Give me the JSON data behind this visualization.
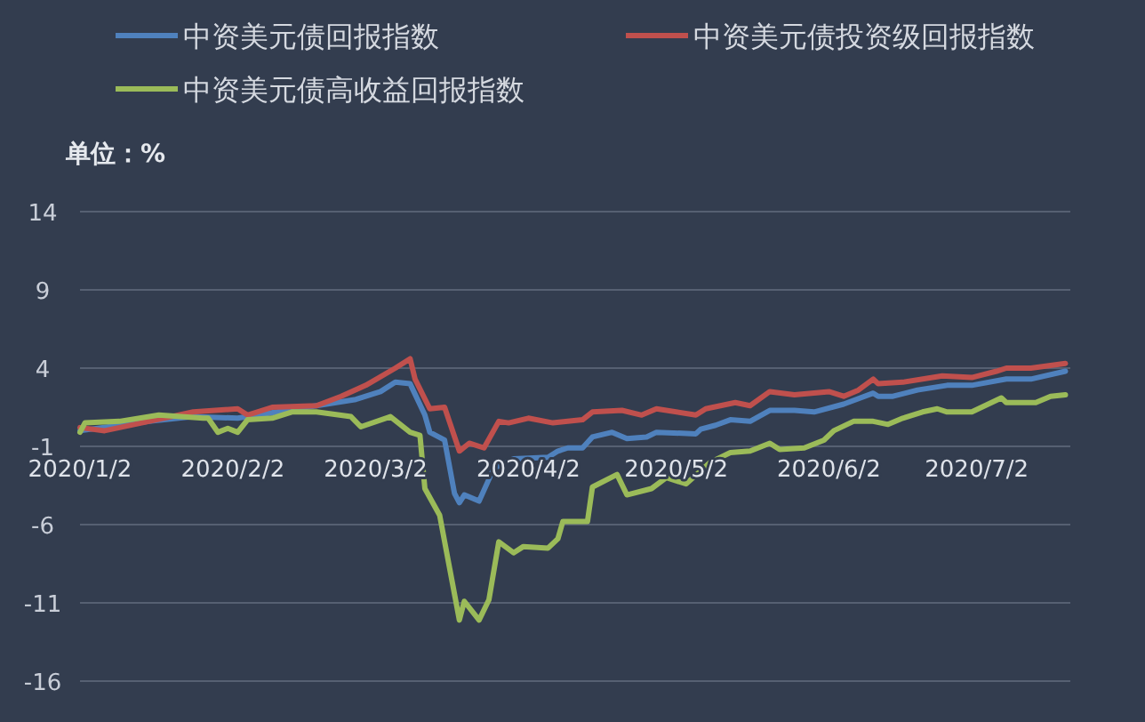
{
  "chart_data": {
    "type": "line",
    "ylabel": "单位：%",
    "legend": "top",
    "grid": "y",
    "marker": "none",
    "line_style": "solid",
    "xlim": [
      "2020-01-02",
      "2020-07-21"
    ],
    "ylim": [
      -16,
      14
    ],
    "yticks": [
      -16,
      -11,
      -6,
      -1,
      4,
      9,
      14
    ],
    "xticks": [
      {
        "value": "2020-01-02",
        "label": "2020/1/2"
      },
      {
        "value": "2020-02-02",
        "label": "2020/2/2"
      },
      {
        "value": "2020-03-02",
        "label": "2020/3/2"
      },
      {
        "value": "2020-04-02",
        "label": "2020/4/2"
      },
      {
        "value": "2020-05-02",
        "label": "2020/5/2"
      },
      {
        "value": "2020-06-02",
        "label": "2020/6/2"
      },
      {
        "value": "2020-07-02",
        "label": "2020/7/2"
      }
    ],
    "series": [
      {
        "name": "中资美元债回报指数",
        "color": "#4f81bd",
        "x": [
          "2020-01-02",
          "2020-01-16",
          "2020-01-25",
          "2020-02-03",
          "2020-02-11",
          "2020-02-19",
          "2020-02-27",
          "2020-03-03",
          "2020-03-06",
          "2020-03-09",
          "2020-03-12",
          "2020-03-13",
          "2020-03-16",
          "2020-03-18",
          "2020-03-19",
          "2020-03-20",
          "2020-03-23",
          "2020-03-26",
          "2020-03-30",
          "2020-04-06",
          "2020-04-08",
          "2020-04-10",
          "2020-04-13",
          "2020-04-15",
          "2020-04-19",
          "2020-04-22",
          "2020-04-26",
          "2020-04-28",
          "2020-05-06",
          "2020-05-07",
          "2020-05-10",
          "2020-05-13",
          "2020-05-17",
          "2020-05-21",
          "2020-05-26",
          "2020-05-30",
          "2020-06-05",
          "2020-06-11",
          "2020-06-12",
          "2020-06-15",
          "2020-06-20",
          "2020-06-26",
          "2020-07-01",
          "2020-07-08",
          "2020-07-13",
          "2020-07-20"
        ],
        "values": [
          0.0,
          0.6,
          0.9,
          0.8,
          1.2,
          1.6,
          2.0,
          2.5,
          3.1,
          3.0,
          1.0,
          -0.1,
          -0.6,
          -4.0,
          -4.6,
          -4.1,
          -4.5,
          -2.4,
          -1.8,
          -1.7,
          -1.3,
          -1.1,
          -1.1,
          -0.4,
          -0.1,
          -0.5,
          -0.4,
          -0.1,
          -0.2,
          0.1,
          0.35,
          0.7,
          0.6,
          1.3,
          1.3,
          1.2,
          1.7,
          2.4,
          2.2,
          2.2,
          2.6,
          2.9,
          2.9,
          3.3,
          3.3,
          3.8
        ]
      },
      {
        "name": "中资美元债投资级回报指数",
        "color": "#c0504d",
        "x": [
          "2020-01-02",
          "2020-01-07",
          "2020-01-16",
          "2020-01-25",
          "2020-02-03",
          "2020-02-05",
          "2020-02-10",
          "2020-02-19",
          "2020-02-24",
          "2020-02-29",
          "2020-03-06",
          "2020-03-09",
          "2020-03-10",
          "2020-03-13",
          "2020-03-16",
          "2020-03-19",
          "2020-03-21",
          "2020-03-24",
          "2020-03-27",
          "2020-03-29",
          "2020-04-02",
          "2020-04-07",
          "2020-04-13",
          "2020-04-15",
          "2020-04-21",
          "2020-04-25",
          "2020-04-28",
          "2020-05-06",
          "2020-05-08",
          "2020-05-14",
          "2020-05-17",
          "2020-05-21",
          "2020-05-26",
          "2020-06-02",
          "2020-06-05",
          "2020-06-08",
          "2020-06-11",
          "2020-06-12",
          "2020-06-17",
          "2020-06-25",
          "2020-07-01",
          "2020-07-06",
          "2020-07-08",
          "2020-07-13",
          "2020-07-20"
        ],
        "values": [
          0.2,
          0.0,
          0.6,
          1.2,
          1.4,
          1.0,
          1.5,
          1.6,
          2.2,
          2.9,
          4.0,
          4.6,
          3.3,
          1.4,
          1.5,
          -1.3,
          -0.8,
          -1.1,
          0.6,
          0.5,
          0.8,
          0.5,
          0.7,
          1.2,
          1.3,
          1.0,
          1.4,
          1.0,
          1.4,
          1.8,
          1.6,
          2.5,
          2.3,
          2.5,
          2.2,
          2.6,
          3.3,
          3.0,
          3.1,
          3.5,
          3.4,
          3.8,
          4.0,
          4.0,
          4.3
        ]
      },
      {
        "name": "中资美元债高收益回报指数",
        "color": "#9bbb59",
        "x": [
          "2020-01-02",
          "2020-01-03",
          "2020-01-10",
          "2020-01-18",
          "2020-01-27",
          "2020-01-28",
          "2020-01-30",
          "2020-02-01",
          "2020-02-03",
          "2020-02-05",
          "2020-02-10",
          "2020-02-14",
          "2020-02-19",
          "2020-02-26",
          "2020-02-28",
          "2020-03-05",
          "2020-03-09",
          "2020-03-11",
          "2020-03-12",
          "2020-03-15",
          "2020-03-19",
          "2020-03-20",
          "2020-03-23",
          "2020-03-25",
          "2020-03-27",
          "2020-03-30",
          "2020-04-01",
          "2020-04-06",
          "2020-04-08",
          "2020-04-09",
          "2020-04-14",
          "2020-04-15",
          "2020-04-20",
          "2020-04-22",
          "2020-04-27",
          "2020-04-30",
          "2020-05-04",
          "2020-05-09",
          "2020-05-13",
          "2020-05-17",
          "2020-05-21",
          "2020-05-23",
          "2020-05-28",
          "2020-06-01",
          "2020-06-03",
          "2020-06-07",
          "2020-06-11",
          "2020-06-14",
          "2020-06-17",
          "2020-06-21",
          "2020-06-24",
          "2020-06-26",
          "2020-07-01",
          "2020-07-07",
          "2020-07-08",
          "2020-07-14",
          "2020-07-17",
          "2020-07-20"
        ],
        "values": [
          -0.1,
          0.5,
          0.6,
          1.0,
          0.8,
          0.8,
          -0.1,
          0.15,
          -0.1,
          0.7,
          0.8,
          1.2,
          1.2,
          0.9,
          0.25,
          0.9,
          -0.1,
          -0.3,
          -3.7,
          -5.4,
          -12.1,
          -10.9,
          -12.1,
          -10.8,
          -7.1,
          -7.8,
          -7.4,
          -7.5,
          -6.9,
          -5.8,
          -5.8,
          -3.6,
          -2.8,
          -4.1,
          -3.7,
          -3.0,
          -3.4,
          -2.0,
          -1.4,
          -1.3,
          -0.8,
          -1.2,
          -1.1,
          -0.6,
          0.0,
          0.6,
          0.6,
          0.4,
          0.8,
          1.2,
          1.4,
          1.2,
          1.2,
          2.1,
          1.8,
          1.8,
          2.2,
          2.3
        ]
      }
    ]
  }
}
